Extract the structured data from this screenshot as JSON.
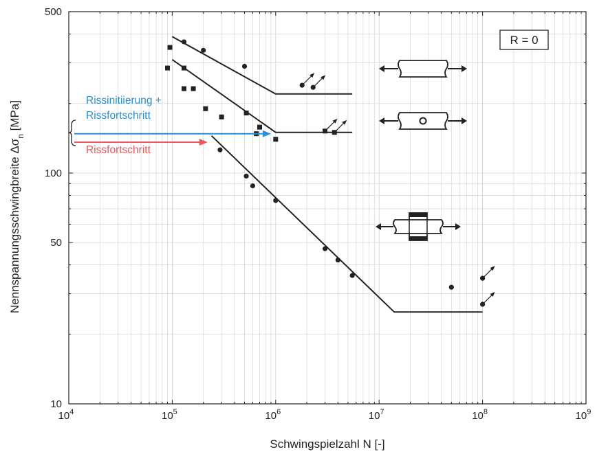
{
  "chart_data": {
    "type": "scatter",
    "xscale": "log",
    "yscale": "log",
    "xlim": [
      10000,
      1000000000
    ],
    "ylim": [
      10,
      500
    ],
    "grid": true,
    "xlabel": "Schwingspielzahl N [-]",
    "ylabel": "Nennspannungsschwingbreite  Δσ",
    "ylabel_sub": "n",
    "ylabel_unit": "  [MPa]",
    "x_ticks": [
      {
        "base": "10",
        "exp": "4"
      },
      {
        "base": "10",
        "exp": "5"
      },
      {
        "base": "10",
        "exp": "6"
      },
      {
        "base": "10",
        "exp": "7"
      },
      {
        "base": "10",
        "exp": "8"
      },
      {
        "base": "10",
        "exp": "9"
      }
    ],
    "y_ticks": [
      "10",
      "50",
      "100",
      "500"
    ],
    "y_tick_values": [
      10,
      50,
      100,
      500
    ],
    "legend_box": "R = 0",
    "annotations": {
      "blue_line1": "Rissinitiierung +",
      "blue_line2": "Rissfortschritt",
      "red": "Rissfortschritt"
    },
    "colors": {
      "blue": "#2a8fd4",
      "red": "#e8585c",
      "ink": "#222222",
      "grid": "#d9d9d9"
    },
    "series": [
      {
        "marker": "circle",
        "points": [
          [
            130000,
            370
          ],
          [
            200000,
            340
          ],
          [
            500000,
            290
          ],
          [
            1800000,
            240
          ],
          [
            2300000,
            235
          ]
        ],
        "runouts": [
          [
            1800000,
            240
          ],
          [
            2300000,
            235
          ]
        ],
        "curve": [
          [
            100000,
            390
          ],
          [
            1000000,
            220
          ],
          [
            5500000,
            220
          ]
        ]
      },
      {
        "marker": "square",
        "points": [
          [
            95000,
            350
          ],
          [
            90000,
            285
          ],
          [
            130000,
            285
          ],
          [
            130000,
            232
          ],
          [
            160000,
            232
          ],
          [
            210000,
            190
          ],
          [
            300000,
            175
          ],
          [
            520000,
            182
          ],
          [
            700000,
            158
          ],
          [
            650000,
            148
          ],
          [
            1000000,
            140
          ]
        ],
        "runouts": [
          [
            3000000,
            152
          ],
          [
            3700000,
            150
          ]
        ],
        "curve": [
          [
            100000,
            310
          ],
          [
            1000000,
            150
          ],
          [
            5500000,
            150
          ]
        ]
      },
      {
        "marker": "circle",
        "points": [
          [
            290000,
            126
          ],
          [
            520000,
            97
          ],
          [
            600000,
            88
          ],
          [
            1000000,
            76
          ],
          [
            3000000,
            47
          ],
          [
            4000000,
            42
          ],
          [
            5500000,
            36
          ],
          [
            50000000,
            32
          ],
          [
            100000000,
            35
          ],
          [
            100000000,
            27
          ]
        ],
        "runouts": [
          [
            100000000,
            35
          ],
          [
            100000000,
            27
          ]
        ],
        "curve": [
          [
            240000,
            145
          ],
          [
            14000000,
            25
          ],
          [
            100000000,
            25
          ]
        ]
      }
    ],
    "arrows": [
      {
        "color": "blue",
        "x_end": 900000,
        "y": 148
      },
      {
        "color": "red",
        "x_end": 220000,
        "y": 136
      }
    ]
  }
}
